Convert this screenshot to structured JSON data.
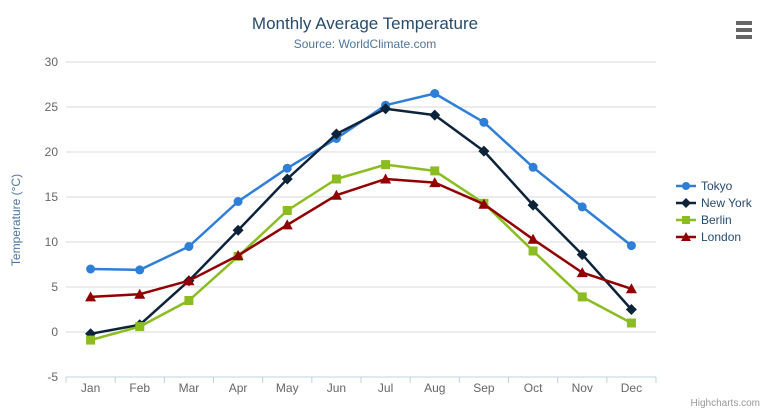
{
  "chart": {
    "credits": "Highcharts.com",
    "icons": {
      "context_menu": "hamburger-menu-icon"
    },
    "colors": {
      "title": "#274b6d",
      "subtitle": "#4d759e",
      "axis_title": "#4d759e",
      "axis_labels": "#666666",
      "gridline": "#d8d8d8",
      "axis_line": "#c0d0e0",
      "legend_text": "#274b6d",
      "credits_text": "#999999"
    }
  },
  "chart_data": {
    "type": "line",
    "title": "Monthly Average Temperature",
    "subtitle": "Source: WorldClimate.com",
    "xlabel": "",
    "ylabel": "Temperature (°C)",
    "categories": [
      "Jan",
      "Feb",
      "Mar",
      "Apr",
      "May",
      "Jun",
      "Jul",
      "Aug",
      "Sep",
      "Oct",
      "Nov",
      "Dec"
    ],
    "ylim": [
      -5,
      30
    ],
    "yticks": [
      -5,
      0,
      5,
      10,
      15,
      20,
      25,
      30
    ],
    "grid": true,
    "legend_position": "right",
    "series": [
      {
        "name": "Tokyo",
        "color": "#2f7ed8",
        "marker": "circle",
        "values": [
          7.0,
          6.9,
          9.5,
          14.5,
          18.2,
          21.5,
          25.2,
          26.5,
          23.3,
          18.3,
          13.9,
          9.6
        ]
      },
      {
        "name": "New York",
        "color": "#0d233a",
        "marker": "diamond",
        "values": [
          -0.2,
          0.8,
          5.7,
          11.3,
          17.0,
          22.0,
          24.8,
          24.1,
          20.1,
          14.1,
          8.6,
          2.5
        ]
      },
      {
        "name": "Berlin",
        "color": "#8bbc21",
        "marker": "square",
        "values": [
          -0.9,
          0.6,
          3.5,
          8.4,
          13.5,
          17.0,
          18.6,
          17.9,
          14.3,
          9.0,
          3.9,
          1.0
        ]
      },
      {
        "name": "London",
        "color": "#910000",
        "marker": "triangle",
        "values": [
          3.9,
          4.2,
          5.7,
          8.5,
          11.9,
          15.2,
          17.0,
          16.6,
          14.2,
          10.3,
          6.6,
          4.8
        ]
      }
    ]
  }
}
